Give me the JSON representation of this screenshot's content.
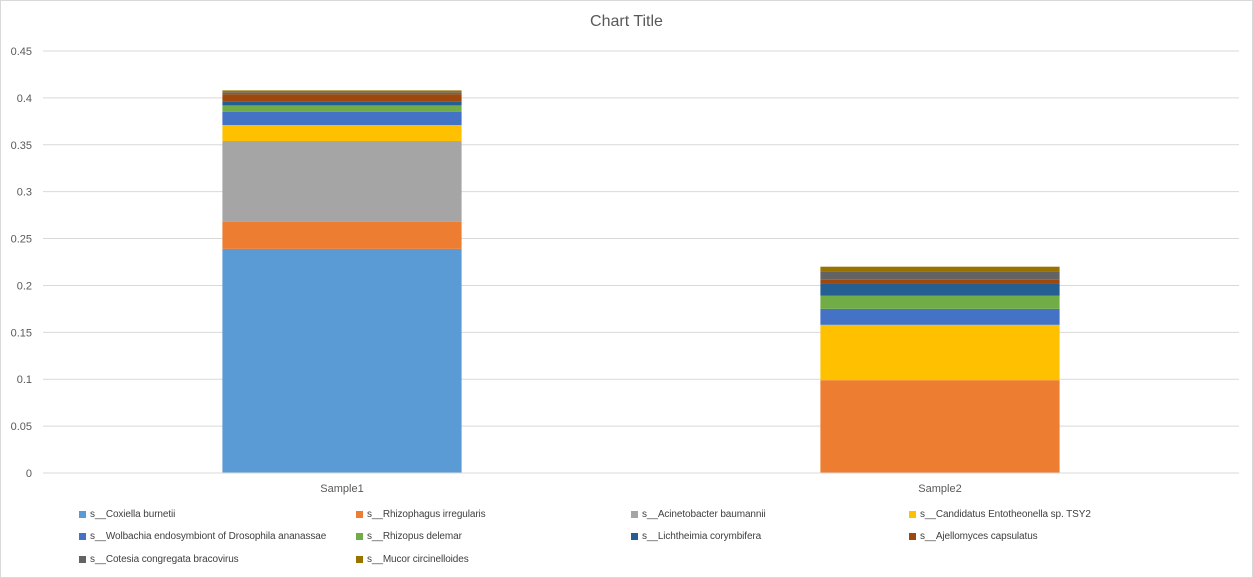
{
  "chart_data": {
    "type": "bar",
    "stacked": true,
    "title": "Chart Title",
    "xlabel": "",
    "ylabel": "",
    "categories": [
      "Sample1",
      "Sample2"
    ],
    "ylim": [
      0,
      0.45
    ],
    "yticks": [
      0,
      0.05,
      0.1,
      0.15,
      0.2,
      0.25,
      0.3,
      0.35,
      0.4,
      0.45
    ],
    "ytick_labels": [
      "0",
      "0.05",
      "0.1",
      "0.15",
      "0.2",
      "0.25",
      "0.3",
      "0.35",
      "0.4",
      "0.45"
    ],
    "grid": true,
    "legend_position": "bottom",
    "series": [
      {
        "name": "s__Coxiella burnetii",
        "color": "#5b9bd5",
        "values": [
          0.239,
          0
        ]
      },
      {
        "name": "s__Rhizophagus irregularis",
        "color": "#ed7d31",
        "values": [
          0.029,
          0.099
        ]
      },
      {
        "name": "s__Acinetobacter baumannii",
        "color": "#a5a5a5",
        "values": [
          0.086,
          0
        ]
      },
      {
        "name": "s__Candidatus Entotheonella sp. TSY2",
        "color": "#ffc000",
        "values": [
          0.017,
          0.059
        ]
      },
      {
        "name": "s__Wolbachia endosymbiont of Drosophila ananassae",
        "color": "#4472c4",
        "values": [
          0.014,
          0.017
        ]
      },
      {
        "name": "s__Rhizopus delemar",
        "color": "#70ad47",
        "values": [
          0.007,
          0.014
        ]
      },
      {
        "name": "s__Lichtheimia corymbifera",
        "color": "#255e91",
        "values": [
          0.004,
          0.013
        ]
      },
      {
        "name": "s__Ajellomyces capsulatus",
        "color": "#9e480e",
        "values": [
          0.008,
          0.004
        ]
      },
      {
        "name": "s__Cotesia congregata bracovirus",
        "color": "#636363",
        "values": [
          0.002,
          0.009
        ]
      },
      {
        "name": "s__Mucor circinelloides",
        "color": "#997300",
        "values": [
          0.002,
          0.005
        ]
      }
    ]
  }
}
